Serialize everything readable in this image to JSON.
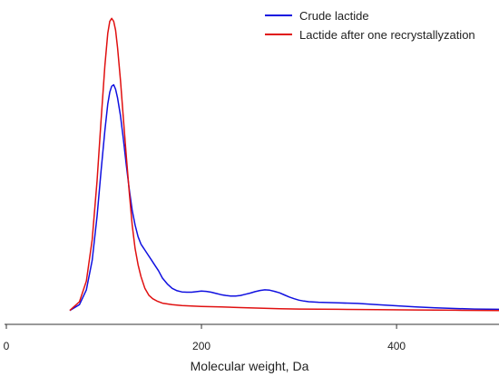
{
  "chart_data": {
    "type": "line",
    "xlabel": "Molecular weight, Da",
    "ylabel": "",
    "xlim": [
      0,
      505
    ],
    "ylim": [
      0,
      1.05
    ],
    "x_ticks": [
      0,
      200,
      400
    ],
    "x_tick_labels": [
      "0",
      "200",
      "400"
    ],
    "grid": false,
    "y_axis_shown": false,
    "legend_position": "top-right",
    "series": [
      {
        "name": "Crude lactide",
        "color": "#1010e0",
        "x": [
          65,
          75,
          82,
          88,
          93,
          97,
          101,
          104,
          106,
          108,
          110,
          112,
          114,
          117,
          120,
          123,
          126,
          129,
          132,
          135,
          138,
          140,
          142,
          145,
          148,
          152,
          156,
          160,
          165,
          170,
          175,
          180,
          185,
          190,
          195,
          200,
          205,
          210,
          215,
          220,
          225,
          230,
          235,
          240,
          245,
          250,
          255,
          260,
          265,
          270,
          275,
          280,
          285,
          290,
          295,
          300,
          305,
          310,
          320,
          340,
          360,
          380,
          400,
          420,
          440,
          460,
          480,
          505
        ],
        "y": [
          0.01,
          0.03,
          0.08,
          0.18,
          0.33,
          0.48,
          0.62,
          0.71,
          0.75,
          0.77,
          0.775,
          0.76,
          0.73,
          0.67,
          0.59,
          0.5,
          0.42,
          0.35,
          0.3,
          0.26,
          0.235,
          0.225,
          0.215,
          0.2,
          0.185,
          0.165,
          0.145,
          0.12,
          0.1,
          0.085,
          0.077,
          0.073,
          0.072,
          0.072,
          0.074,
          0.076,
          0.075,
          0.072,
          0.068,
          0.064,
          0.061,
          0.059,
          0.059,
          0.061,
          0.065,
          0.069,
          0.074,
          0.078,
          0.08,
          0.079,
          0.075,
          0.07,
          0.063,
          0.056,
          0.05,
          0.045,
          0.042,
          0.04,
          0.038,
          0.036,
          0.034,
          0.03,
          0.026,
          0.022,
          0.019,
          0.017,
          0.015,
          0.014
        ]
      },
      {
        "name": "Lactide after one recrystallyzation",
        "color": "#e01010",
        "x": [
          65,
          75,
          82,
          88,
          93,
          97,
          101,
          104,
          106,
          108,
          110,
          112,
          114,
          117,
          120,
          123,
          126,
          129,
          132,
          135,
          138,
          142,
          146,
          150,
          155,
          160,
          170,
          180,
          200,
          220,
          240,
          260,
          280,
          300,
          340,
          380,
          420,
          460,
          505
        ],
        "y": [
          0.01,
          0.04,
          0.11,
          0.25,
          0.45,
          0.65,
          0.84,
          0.95,
          0.99,
          1.0,
          0.99,
          0.96,
          0.9,
          0.79,
          0.66,
          0.53,
          0.41,
          0.3,
          0.22,
          0.165,
          0.125,
          0.085,
          0.062,
          0.05,
          0.041,
          0.035,
          0.03,
          0.027,
          0.024,
          0.022,
          0.02,
          0.018,
          0.016,
          0.015,
          0.014,
          0.013,
          0.012,
          0.011,
          0.01
        ]
      }
    ]
  }
}
